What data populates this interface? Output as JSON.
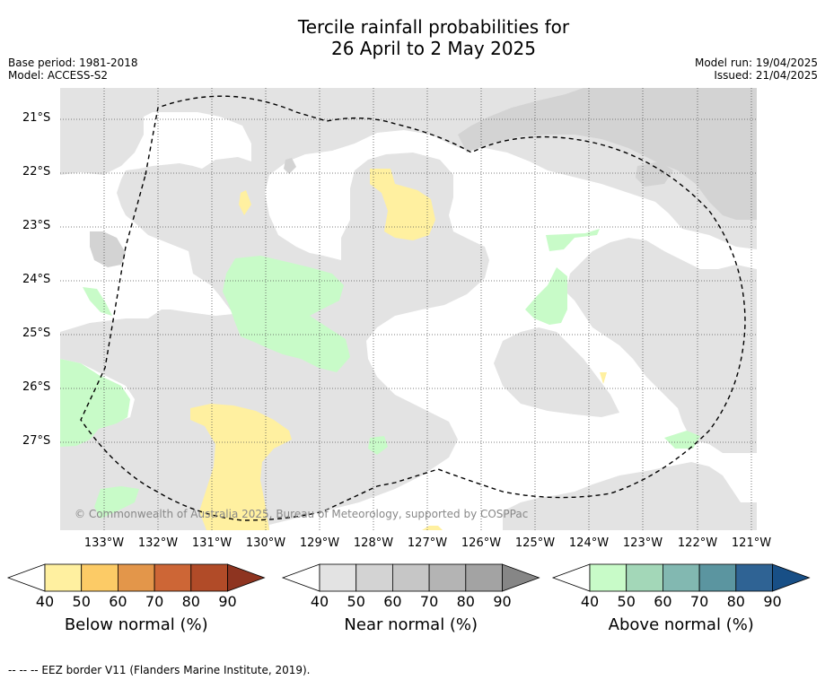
{
  "title_line1": "Tercile rainfall probabilities for",
  "title_line2": "26 April to 2 May 2025",
  "meta": {
    "base_period": "Base period: 1981-2018",
    "model": "Model: ACCESS-S2",
    "model_run": "Model run: 19/04/2025",
    "issued": "Issued: 21/04/2025"
  },
  "axes": {
    "latitudes": [
      "21°S",
      "22°S",
      "23°S",
      "24°S",
      "25°S",
      "26°S",
      "27°S"
    ],
    "longitudes": [
      "133°W",
      "132°W",
      "131°W",
      "130°W",
      "129°W",
      "128°W",
      "127°W",
      "126°W",
      "125°W",
      "124°W",
      "123°W",
      "122°W",
      "121°W"
    ]
  },
  "colors": {
    "below": [
      "#fff0a0",
      "#fccb66",
      "#e3964a",
      "#cd6636",
      "#b14b28",
      "#8e3420"
    ],
    "near": [
      "#e3e3e3",
      "#d3d3d3",
      "#c6c6c6",
      "#b4b4b4",
      "#a3a3a3",
      "#868686"
    ],
    "above": [
      "#c8fbc8",
      "#a3d7b8",
      "#82b8b1",
      "#5b95a0",
      "#2f6394",
      "#184f86"
    ]
  },
  "copyright": "© Commonwealth of Australia 2025, Bureau of Meteorology, supported by COSPPac",
  "colorbars": [
    {
      "key": "below",
      "title": "Below normal (%)",
      "ticks": [
        "40",
        "50",
        "60",
        "70",
        "80",
        "90"
      ]
    },
    {
      "key": "near",
      "title": "Near normal (%)",
      "ticks": [
        "40",
        "50",
        "60",
        "70",
        "80",
        "90"
      ]
    },
    {
      "key": "above",
      "title": "Above normal (%)",
      "ticks": [
        "40",
        "50",
        "60",
        "70",
        "80",
        "90"
      ]
    }
  ],
  "footer": "--  --  -- EEZ border V11 (Flanders Marine Institute, 2019)."
}
